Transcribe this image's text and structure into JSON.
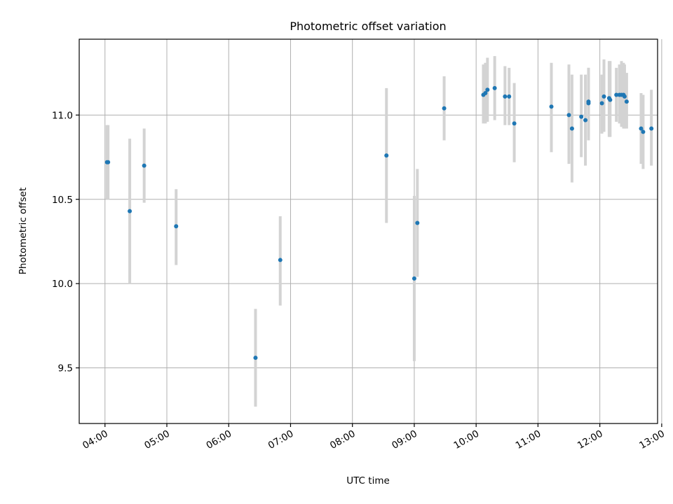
{
  "chart_data": {
    "type": "scatter",
    "title": "Photometric offset variation",
    "xlabel": "UTC time",
    "ylabel": "Photometric offset",
    "x_tick_labels": [
      "04:00",
      "05:00",
      "06:00",
      "07:00",
      "08:00",
      "09:00",
      "10:00",
      "11:00",
      "12:00",
      "13:00"
    ],
    "y_tick_labels": [
      "9.5",
      "10.0",
      "10.5",
      "11.0"
    ],
    "x_ticks": [
      "04:00",
      "05:00",
      "06:00",
      "07:00",
      "08:00",
      "09:00",
      "10:00",
      "11:00",
      "12:00",
      "13:00"
    ],
    "y_ticks": [
      9.5,
      10.0,
      10.5,
      11.0
    ],
    "xlim": [
      "03:35",
      "12:56"
    ],
    "ylim": [
      9.17,
      11.45
    ],
    "grid": true,
    "colors": {
      "marker": "#1f77b4",
      "errorbar": "#d3d3d3"
    },
    "series": [
      {
        "points": [
          {
            "x": "04:02",
            "y": 10.72,
            "lo": 10.5,
            "hi": 10.94
          },
          {
            "x": "04:03",
            "y": 10.72,
            "lo": 10.5,
            "hi": 10.94
          },
          {
            "x": "04:24",
            "y": 10.43,
            "lo": 10.0,
            "hi": 10.86
          },
          {
            "x": "04:38",
            "y": 10.7,
            "lo": 10.48,
            "hi": 10.92
          },
          {
            "x": "05:09",
            "y": 10.34,
            "lo": 10.11,
            "hi": 10.56
          },
          {
            "x": "06:26",
            "y": 9.56,
            "lo": 9.27,
            "hi": 9.85
          },
          {
            "x": "06:50",
            "y": 10.14,
            "lo": 9.87,
            "hi": 10.4
          },
          {
            "x": "08:33",
            "y": 10.76,
            "lo": 10.36,
            "hi": 11.16
          },
          {
            "x": "09:00",
            "y": 10.03,
            "lo": 9.54,
            "hi": 10.52
          },
          {
            "x": "09:03",
            "y": 10.36,
            "lo": 10.04,
            "hi": 10.68
          },
          {
            "x": "09:29",
            "y": 11.04,
            "lo": 10.85,
            "hi": 11.23
          },
          {
            "x": "10:07",
            "y": 11.12,
            "lo": 10.95,
            "hi": 11.3
          },
          {
            "x": "10:09",
            "y": 11.13,
            "lo": 10.95,
            "hi": 11.31
          },
          {
            "x": "10:11",
            "y": 11.15,
            "lo": 10.96,
            "hi": 11.34
          },
          {
            "x": "10:18",
            "y": 11.16,
            "lo": 10.97,
            "hi": 11.35
          },
          {
            "x": "10:28",
            "y": 11.11,
            "lo": 10.94,
            "hi": 11.29
          },
          {
            "x": "10:32",
            "y": 11.11,
            "lo": 10.94,
            "hi": 11.28
          },
          {
            "x": "10:37",
            "y": 10.95,
            "lo": 10.72,
            "hi": 11.19
          },
          {
            "x": "11:13",
            "y": 11.05,
            "lo": 10.78,
            "hi": 11.31
          },
          {
            "x": "11:30",
            "y": 11.0,
            "lo": 10.71,
            "hi": 11.3
          },
          {
            "x": "11:33",
            "y": 10.92,
            "lo": 10.6,
            "hi": 11.24
          },
          {
            "x": "11:42",
            "y": 10.99,
            "lo": 10.75,
            "hi": 11.24
          },
          {
            "x": "11:46",
            "y": 10.97,
            "lo": 10.7,
            "hi": 11.24
          },
          {
            "x": "11:49",
            "y": 11.07,
            "lo": 10.85,
            "hi": 11.28
          },
          {
            "x": "11:49",
            "y": 11.08,
            "lo": 10.87,
            "hi": 11.28
          },
          {
            "x": "12:02",
            "y": 11.07,
            "lo": 10.89,
            "hi": 11.24
          },
          {
            "x": "12:04",
            "y": 11.11,
            "lo": 10.9,
            "hi": 11.33
          },
          {
            "x": "12:09",
            "y": 11.1,
            "lo": 10.87,
            "hi": 11.32
          },
          {
            "x": "12:10",
            "y": 11.09,
            "lo": 10.87,
            "hi": 11.32
          },
          {
            "x": "12:16",
            "y": 11.12,
            "lo": 10.96,
            "hi": 11.28
          },
          {
            "x": "12:19",
            "y": 11.12,
            "lo": 10.95,
            "hi": 11.3
          },
          {
            "x": "12:21",
            "y": 11.12,
            "lo": 10.93,
            "hi": 11.32
          },
          {
            "x": "12:23",
            "y": 11.12,
            "lo": 10.92,
            "hi": 11.31
          },
          {
            "x": "12:24",
            "y": 11.11,
            "lo": 10.92,
            "hi": 11.3
          },
          {
            "x": "12:26",
            "y": 11.08,
            "lo": 10.92,
            "hi": 11.25
          },
          {
            "x": "12:40",
            "y": 10.92,
            "lo": 10.71,
            "hi": 11.13
          },
          {
            "x": "12:42",
            "y": 10.9,
            "lo": 10.68,
            "hi": 11.12
          },
          {
            "x": "12:50",
            "y": 10.92,
            "lo": 10.7,
            "hi": 11.15
          }
        ]
      }
    ]
  }
}
